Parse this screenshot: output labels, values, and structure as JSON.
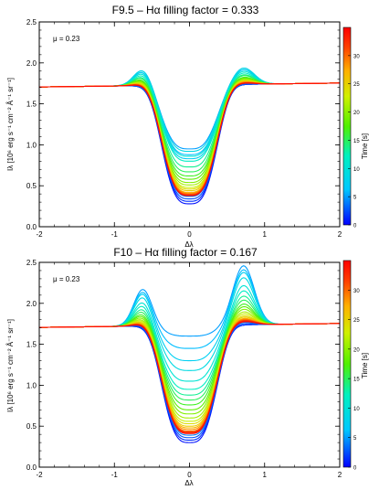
{
  "chart_data": [
    {
      "type": "line",
      "title": "F9.5 – Hα filling factor = 0.333",
      "xlabel": "Δλ",
      "ylabel": "Iλ [10⁶ erg s⁻¹ cm⁻² Å⁻¹ sr⁻¹]",
      "annotation": "μ = 0.23",
      "xlim": [
        -2,
        2
      ],
      "ylim": [
        0,
        2.5
      ],
      "xticks": [
        "-2",
        "-1",
        "0",
        "1",
        "2"
      ],
      "yticks": [
        "0.0",
        "0.5",
        "1.0",
        "1.5",
        "2.0",
        "2.5"
      ],
      "grid": false,
      "colorbar": {
        "label": "Time [s]",
        "range": [
          0,
          35
        ],
        "ticks": [
          "0",
          "5",
          "10",
          "15",
          "20",
          "25",
          "30"
        ]
      },
      "profile_shape": {
        "core_half_width": 0.42,
        "wing_level": 1.73,
        "wing_slope": 0.012,
        "peak_offset": 0.62,
        "asymmetry": 1.0
      },
      "series": [
        {
          "time": 0.5,
          "min": 0.28,
          "peak": 0
        },
        {
          "time": 1.5,
          "min": 0.31,
          "peak": 0
        },
        {
          "time": 2.5,
          "min": 0.34,
          "peak": 0
        },
        {
          "time": 4,
          "min": 0.37,
          "peak": 0.01
        },
        {
          "time": 5,
          "min": 0.95,
          "peak": 0.2
        },
        {
          "time": 6,
          "min": 0.88,
          "peak": 0.18
        },
        {
          "time": 7.5,
          "min": 0.83,
          "peak": 0.18
        },
        {
          "time": 9,
          "min": 0.92,
          "peak": 0.2
        },
        {
          "time": 10.5,
          "min": 0.86,
          "peak": 0.16
        },
        {
          "time": 12,
          "min": 0.8,
          "peak": 0.14
        },
        {
          "time": 13.5,
          "min": 0.73,
          "peak": 0.12
        },
        {
          "time": 15,
          "min": 0.67,
          "peak": 0.11
        },
        {
          "time": 16.5,
          "min": 0.62,
          "peak": 0.09
        },
        {
          "time": 18,
          "min": 0.58,
          "peak": 0.08
        },
        {
          "time": 19.5,
          "min": 0.54,
          "peak": 0.07
        },
        {
          "time": 21,
          "min": 0.51,
          "peak": 0.06
        },
        {
          "time": 22.5,
          "min": 0.48,
          "peak": 0.05
        },
        {
          "time": 24,
          "min": 0.46,
          "peak": 0.045
        },
        {
          "time": 25.5,
          "min": 0.44,
          "peak": 0.04
        },
        {
          "time": 27,
          "min": 0.42,
          "peak": 0.035
        },
        {
          "time": 28.5,
          "min": 0.41,
          "peak": 0.03
        },
        {
          "time": 30,
          "min": 0.4,
          "peak": 0.025
        },
        {
          "time": 31.5,
          "min": 0.39,
          "peak": 0.02
        },
        {
          "time": 33,
          "min": 0.38,
          "peak": 0.02
        },
        {
          "time": 34.5,
          "min": 0.38,
          "peak": 0.015
        }
      ]
    },
    {
      "type": "line",
      "title": "F10 – Hα filling factor = 0.167",
      "xlabel": "Δλ",
      "ylabel": "Iλ [10⁶ erg s⁻¹ cm⁻² Å⁻¹ sr⁻¹]",
      "annotation": "μ = 0.23",
      "xlim": [
        -2,
        2
      ],
      "ylim": [
        0,
        2.5
      ],
      "xticks": [
        "-2",
        "-1",
        "0",
        "1",
        "2"
      ],
      "yticks": [
        "0.0",
        "0.5",
        "1.0",
        "1.5",
        "2.0",
        "2.5"
      ],
      "grid": false,
      "colorbar": {
        "label": "Time [s]",
        "range": [
          0,
          35
        ],
        "ticks": [
          "0",
          "5",
          "10",
          "15",
          "20",
          "25",
          "30"
        ]
      },
      "profile_shape": {
        "core_half_width": 0.42,
        "wing_level": 1.73,
        "wing_slope": 0.012,
        "peak_offset": 0.62,
        "asymmetry": 1.6
      },
      "series": [
        {
          "time": 0.5,
          "min": 0.3,
          "peak": 0
        },
        {
          "time": 1.5,
          "min": 0.33,
          "peak": 0
        },
        {
          "time": 2.5,
          "min": 0.36,
          "peak": 0.01
        },
        {
          "time": 4,
          "min": 0.39,
          "peak": 0.02
        },
        {
          "time": 5,
          "min": 1.6,
          "peak": 0.45
        },
        {
          "time": 6,
          "min": 1.45,
          "peak": 0.42
        },
        {
          "time": 7.5,
          "min": 1.3,
          "peak": 0.4
        },
        {
          "time": 9,
          "min": 1.18,
          "peak": 0.36
        },
        {
          "time": 10.5,
          "min": 1.05,
          "peak": 0.3
        },
        {
          "time": 12,
          "min": 0.95,
          "peak": 0.26
        },
        {
          "time": 13.5,
          "min": 0.88,
          "peak": 0.22
        },
        {
          "time": 15,
          "min": 0.82,
          "peak": 0.19
        },
        {
          "time": 16.5,
          "min": 0.76,
          "peak": 0.16
        },
        {
          "time": 18,
          "min": 0.7,
          "peak": 0.14
        },
        {
          "time": 19.5,
          "min": 0.65,
          "peak": 0.12
        },
        {
          "time": 21,
          "min": 0.6,
          "peak": 0.1
        },
        {
          "time": 22.5,
          "min": 0.56,
          "peak": 0.085
        },
        {
          "time": 24,
          "min": 0.53,
          "peak": 0.07
        },
        {
          "time": 25.5,
          "min": 0.5,
          "peak": 0.06
        },
        {
          "time": 27,
          "min": 0.48,
          "peak": 0.05
        },
        {
          "time": 28.5,
          "min": 0.46,
          "peak": 0.045
        },
        {
          "time": 30,
          "min": 0.44,
          "peak": 0.04
        },
        {
          "time": 31.5,
          "min": 0.43,
          "peak": 0.035
        },
        {
          "time": 33,
          "min": 0.42,
          "peak": 0.03
        },
        {
          "time": 34.5,
          "min": 0.41,
          "peak": 0.025
        }
      ]
    }
  ]
}
